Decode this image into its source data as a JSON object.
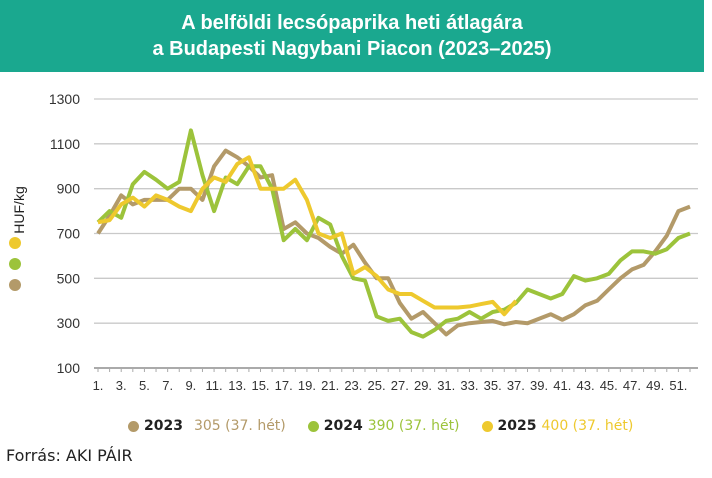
{
  "chart_data": {
    "type": "line",
    "title": [
      "A belföldi lecsópaprika heti átlagára",
      "a Budapesti Nagybani Piacon (2023–2025)"
    ],
    "ylabel": "HUF/kg",
    "xlabel": "",
    "ylim": [
      100,
      1300
    ],
    "yticks": [
      100,
      300,
      500,
      700,
      900,
      1100,
      1300
    ],
    "xlim": [
      1,
      52
    ],
    "xtick_labels": [
      "1.",
      "3.",
      "5.",
      "7.",
      "9.",
      "11.",
      "13.",
      "15.",
      "17.",
      "19.",
      "21.",
      "23.",
      "25.",
      "27.",
      "29.",
      "31.",
      "33.",
      "35.",
      "37.",
      "39.",
      "41.",
      "43.",
      "45.",
      "47.",
      "49.",
      "51."
    ],
    "grid": true,
    "legend_position": "bottom",
    "series": [
      {
        "name": "2023",
        "color": "#b39a69",
        "note": "305 (37. hét)",
        "values": [
          700,
          780,
          870,
          830,
          850,
          850,
          850,
          900,
          900,
          850,
          1000,
          1070,
          1040,
          1000,
          950,
          960,
          720,
          750,
          700,
          680,
          640,
          610,
          650,
          570,
          500,
          500,
          390,
          320,
          350,
          300,
          250,
          290,
          300,
          305,
          310,
          295,
          305,
          300,
          320,
          340,
          315,
          340,
          380,
          400,
          450,
          500,
          540,
          560,
          620,
          690,
          800,
          820
        ]
      },
      {
        "name": "2024",
        "color": "#9cc33b",
        "note": "390 (37. hét)",
        "values": [
          750,
          800,
          770,
          920,
          975,
          940,
          900,
          930,
          1160,
          960,
          800,
          950,
          920,
          1000,
          1000,
          900,
          670,
          720,
          670,
          770,
          740,
          600,
          500,
          490,
          330,
          310,
          320,
          260,
          240,
          270,
          310,
          320,
          350,
          320,
          350,
          360,
          390,
          450,
          430,
          410,
          430,
          510,
          490,
          500,
          520,
          580,
          620,
          620,
          610,
          630,
          680,
          700
        ]
      },
      {
        "name": "2025",
        "color": "#eec92e",
        "note": "400 (37. hét)",
        "values": [
          750,
          760,
          830,
          860,
          820,
          870,
          850,
          820,
          800,
          900,
          950,
          930,
          1010,
          1040,
          900,
          900,
          900,
          940,
          850,
          700,
          680,
          700,
          520,
          550,
          510,
          450,
          430,
          430,
          400,
          370,
          370,
          370,
          375,
          385,
          395,
          340,
          400
        ]
      }
    ]
  },
  "source": "Forrás: AKI PÁIR"
}
